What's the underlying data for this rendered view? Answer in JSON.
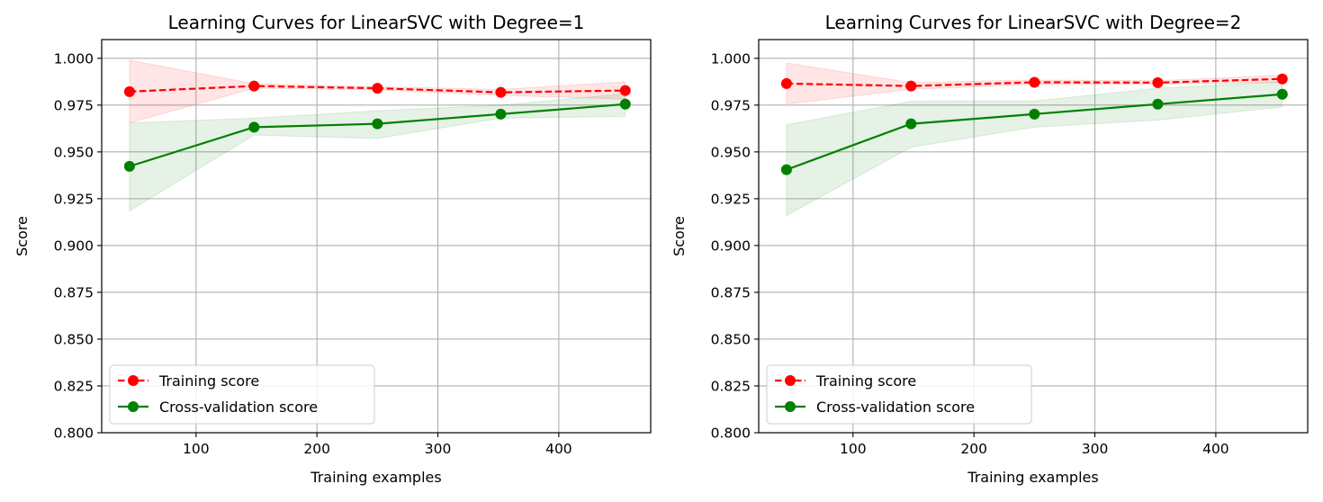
{
  "colors": {
    "training": "#ff0000",
    "cv": "#008000",
    "training_band": "#ff0000",
    "cv_band": "#008000",
    "grid": "#b0b0b0"
  },
  "chart_data": [
    {
      "type": "line",
      "title": "Learning Curves for LinearSVC with Degree=1",
      "xlabel": "Training examples",
      "ylabel": "Score",
      "xlim": [
        22,
        476
      ],
      "ylim": [
        0.8,
        1.01
      ],
      "xticks": [
        100,
        200,
        300,
        400
      ],
      "yticks": [
        0.8,
        0.825,
        0.85,
        0.875,
        0.9,
        0.925,
        0.95,
        0.975,
        1.0
      ],
      "xtick_labels": [
        "100",
        "200",
        "300",
        "400"
      ],
      "ytick_labels": [
        "0.800",
        "0.825",
        "0.850",
        "0.875",
        "0.900",
        "0.925",
        "0.950",
        "0.975",
        "1.000"
      ],
      "grid": true,
      "legend_position": "lower-left",
      "x": [
        45,
        148,
        250,
        352,
        455
      ],
      "series": [
        {
          "name": "Training score",
          "style": "dashed",
          "marker": "circle",
          "color_key": "training",
          "values": [
            0.9822,
            0.9852,
            0.984,
            0.9818,
            0.9828
          ],
          "band_lower": [
            0.9655,
            0.984,
            0.9832,
            0.9802,
            0.9782
          ],
          "band_upper": [
            0.999,
            0.9864,
            0.9848,
            0.9834,
            0.9874
          ]
        },
        {
          "name": "Cross-validation score",
          "style": "solid",
          "marker": "circle",
          "color_key": "cv",
          "values": [
            0.9423,
            0.9632,
            0.965,
            0.9702,
            0.9755
          ],
          "band_lower": [
            0.9185,
            0.959,
            0.9572,
            0.968,
            0.969
          ],
          "band_upper": [
            0.9655,
            0.968,
            0.972,
            0.975,
            0.981
          ]
        }
      ]
    },
    {
      "type": "line",
      "title": "Learning Curves for LinearSVC with Degree=2",
      "xlabel": "Training examples",
      "ylabel": "Score",
      "xlim": [
        22,
        476
      ],
      "ylim": [
        0.8,
        1.01
      ],
      "xticks": [
        100,
        200,
        300,
        400
      ],
      "yticks": [
        0.8,
        0.825,
        0.85,
        0.875,
        0.9,
        0.925,
        0.95,
        0.975,
        1.0
      ],
      "xtick_labels": [
        "100",
        "200",
        "300",
        "400"
      ],
      "ytick_labels": [
        "0.800",
        "0.825",
        "0.850",
        "0.875",
        "0.900",
        "0.925",
        "0.950",
        "0.975",
        "1.000"
      ],
      "grid": true,
      "legend_position": "lower-left",
      "x": [
        45,
        148,
        250,
        352,
        455
      ],
      "series": [
        {
          "name": "Training score",
          "style": "dashed",
          "marker": "circle",
          "color_key": "training",
          "values": [
            0.9865,
            0.9852,
            0.9872,
            0.987,
            0.989
          ],
          "band_lower": [
            0.9755,
            0.9835,
            0.986,
            0.9862,
            0.9872
          ],
          "band_upper": [
            0.9975,
            0.987,
            0.9884,
            0.988,
            0.991
          ]
        },
        {
          "name": "Cross-validation score",
          "style": "solid",
          "marker": "circle",
          "color_key": "cv",
          "values": [
            0.9405,
            0.965,
            0.9702,
            0.9755,
            0.9808
          ],
          "band_lower": [
            0.916,
            0.9525,
            0.9632,
            0.967,
            0.974
          ],
          "band_upper": [
            0.9645,
            0.977,
            0.9772,
            0.984,
            0.9875
          ]
        }
      ]
    }
  ]
}
